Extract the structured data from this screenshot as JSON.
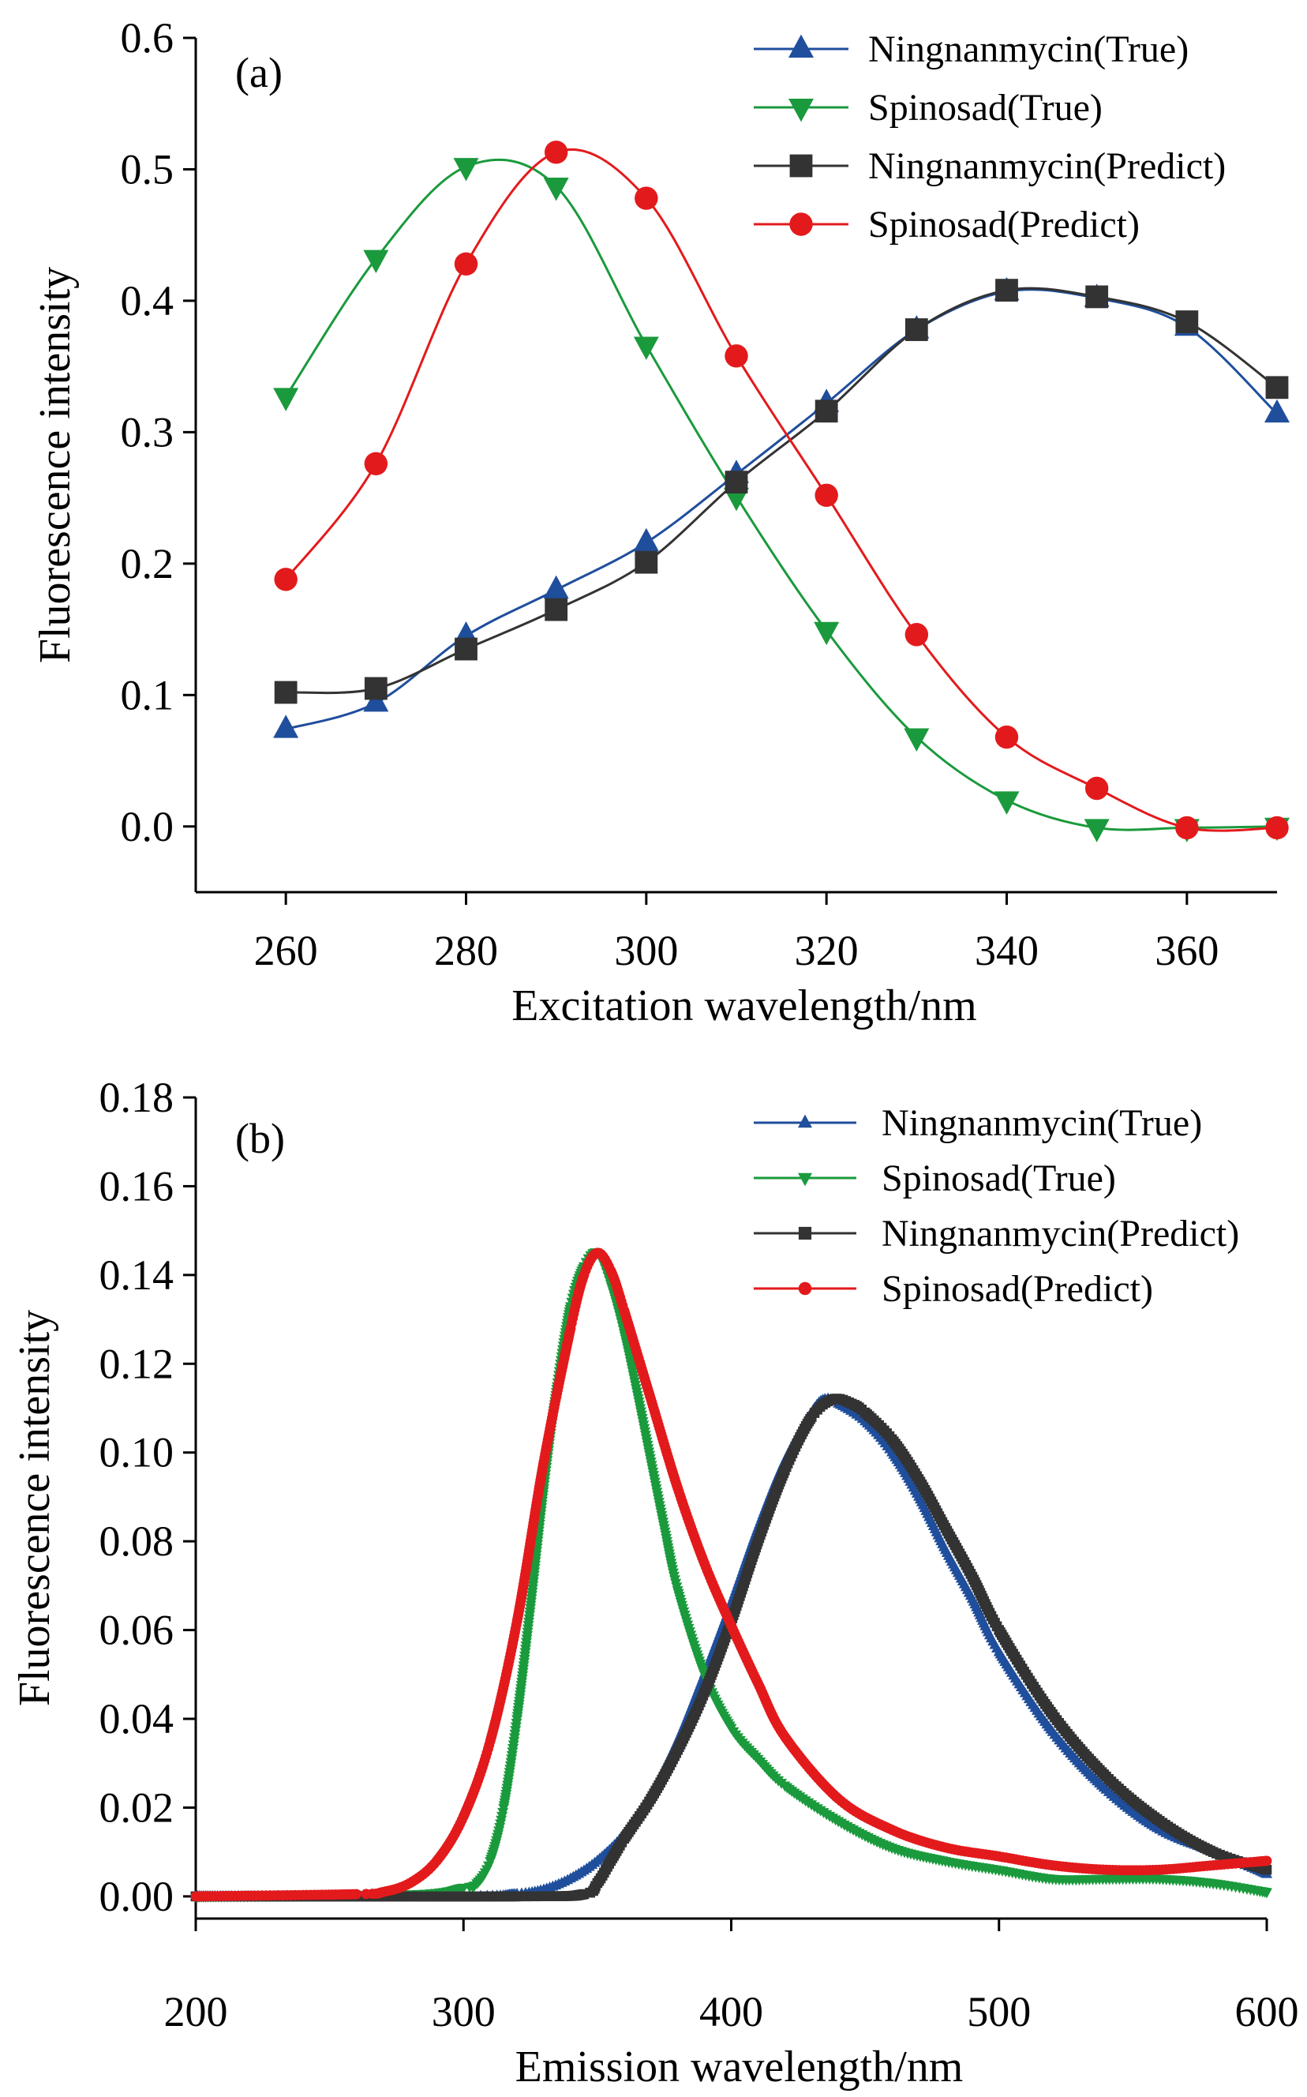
{
  "chart_data": [
    {
      "type": "line",
      "panel_label": "(a)",
      "xlabel": "Excitation wavelength/nm",
      "ylabel": "Fluorescence intensity",
      "xlim": [
        250,
        370
      ],
      "ylim": [
        -0.05,
        0.6
      ],
      "xticks": [
        260,
        280,
        300,
        320,
        340,
        360
      ],
      "yticks": [
        0.0,
        0.1,
        0.2,
        0.3,
        0.4,
        0.5,
        0.6
      ],
      "xtick_labels": [
        "260",
        "280",
        "300",
        "320",
        "340",
        "360"
      ],
      "ytick_labels": [
        "0.0",
        "0.1",
        "0.2",
        "0.3",
        "0.4",
        "0.5",
        "0.6"
      ],
      "legend_position": "top-right",
      "grid": false,
      "x": [
        260,
        270,
        280,
        290,
        300,
        310,
        320,
        330,
        340,
        350,
        360,
        370
      ],
      "series": [
        {
          "name": "Ningnanmycin(True)",
          "color": "#1f4e9c",
          "marker": "triangle-up",
          "values": [
            0.074,
            0.094,
            0.145,
            0.18,
            0.216,
            0.268,
            0.322,
            0.378,
            0.407,
            0.402,
            0.38,
            0.314
          ]
        },
        {
          "name": "Spinosad(True)",
          "color": "#1a9a3c",
          "marker": "triangle-down",
          "values": [
            0.327,
            0.432,
            0.502,
            0.487,
            0.366,
            0.251,
            0.149,
            0.068,
            0.02,
            -0.001,
            -0.001,
            0.0
          ]
        },
        {
          "name": "Ningnanmycin(Predict)",
          "color": "#333333",
          "marker": "square",
          "values": [
            0.102,
            0.105,
            0.135,
            0.165,
            0.201,
            0.262,
            0.316,
            0.378,
            0.408,
            0.403,
            0.384,
            0.334
          ]
        },
        {
          "name": "Spinosad(Predict)",
          "color": "#e31a1c",
          "marker": "circle",
          "values": [
            0.188,
            0.276,
            0.428,
            0.513,
            0.478,
            0.358,
            0.252,
            0.146,
            0.068,
            0.029,
            -0.001,
            -0.001
          ]
        }
      ]
    },
    {
      "type": "line",
      "panel_label": "(b)",
      "xlabel": "Emission wavelength/nm",
      "ylabel": "Fluorescence intensity",
      "xlim": [
        200,
        600
      ],
      "ylim": [
        -0.005,
        0.18
      ],
      "xticks": [
        200,
        300,
        400,
        500,
        600
      ],
      "yticks": [
        0.0,
        0.02,
        0.04,
        0.06,
        0.08,
        0.1,
        0.12,
        0.14,
        0.16,
        0.18
      ],
      "xtick_labels": [
        "200",
        "300",
        "400",
        "500",
        "600"
      ],
      "ytick_labels": [
        "0.00",
        "0.02",
        "0.04",
        "0.06",
        "0.08",
        "0.10",
        "0.12",
        "0.14",
        "0.16",
        "0.18"
      ],
      "legend_position": "top-right",
      "grid": false,
      "series": [
        {
          "name": "Ningnanmycin(True)",
          "color": "#1f4e9c",
          "marker": "triangle-up",
          "x": [
            200,
            300,
            320,
            330,
            340,
            350,
            360,
            370,
            380,
            390,
            400,
            410,
            420,
            430,
            435,
            440,
            450,
            460,
            470,
            480,
            490,
            500,
            520,
            540,
            560,
            580,
            600
          ],
          "y": [
            0.0,
            0.0,
            0.0005,
            0.0015,
            0.004,
            0.008,
            0.014,
            0.023,
            0.035,
            0.05,
            0.066,
            0.083,
            0.098,
            0.109,
            0.112,
            0.111,
            0.107,
            0.1,
            0.09,
            0.078,
            0.067,
            0.055,
            0.037,
            0.024,
            0.015,
            0.01,
            0.005
          ]
        },
        {
          "name": "Spinosad(True)",
          "color": "#1a9a3c",
          "marker": "triangle-down",
          "x": [
            200,
            280,
            300,
            305,
            310,
            315,
            320,
            325,
            330,
            335,
            340,
            345,
            350,
            355,
            360,
            365,
            370,
            375,
            380,
            390,
            400,
            410,
            420,
            440,
            460,
            480,
            500,
            520,
            540,
            560,
            580,
            600
          ],
          "y": [
            0.0,
            0.0005,
            0.002,
            0.003,
            0.008,
            0.02,
            0.04,
            0.065,
            0.092,
            0.115,
            0.133,
            0.142,
            0.145,
            0.138,
            0.127,
            0.113,
            0.098,
            0.083,
            0.069,
            0.05,
            0.038,
            0.031,
            0.025,
            0.017,
            0.011,
            0.008,
            0.006,
            0.004,
            0.004,
            0.004,
            0.003,
            0.001
          ]
        },
        {
          "name": "Ningnanmycin(Predict)",
          "color": "#333333",
          "marker": "square",
          "x": [
            200,
            320,
            345,
            350,
            355,
            360,
            370,
            380,
            390,
            400,
            410,
            420,
            430,
            438,
            445,
            450,
            460,
            470,
            480,
            490,
            500,
            520,
            540,
            560,
            580,
            600
          ],
          "y": [
            0.0,
            0.0,
            0.0005,
            0.003,
            0.008,
            0.013,
            0.022,
            0.033,
            0.046,
            0.062,
            0.08,
            0.096,
            0.108,
            0.112,
            0.111,
            0.109,
            0.103,
            0.094,
            0.083,
            0.072,
            0.06,
            0.041,
            0.027,
            0.017,
            0.01,
            0.006
          ]
        },
        {
          "name": "Spinosad(Predict)",
          "color": "#e31a1c",
          "marker": "circle",
          "x": [
            200,
            260,
            270,
            280,
            290,
            300,
            310,
            320,
            330,
            340,
            345,
            350,
            355,
            360,
            370,
            380,
            390,
            400,
            410,
            420,
            440,
            460,
            480,
            500,
            520,
            540,
            560,
            580,
            600
          ],
          "y": [
            0.0,
            0.0005,
            0.001,
            0.003,
            0.008,
            0.018,
            0.035,
            0.062,
            0.098,
            0.128,
            0.14,
            0.145,
            0.141,
            0.132,
            0.112,
            0.092,
            0.075,
            0.061,
            0.048,
            0.036,
            0.022,
            0.015,
            0.011,
            0.009,
            0.007,
            0.006,
            0.006,
            0.007,
            0.008
          ]
        }
      ]
    }
  ]
}
